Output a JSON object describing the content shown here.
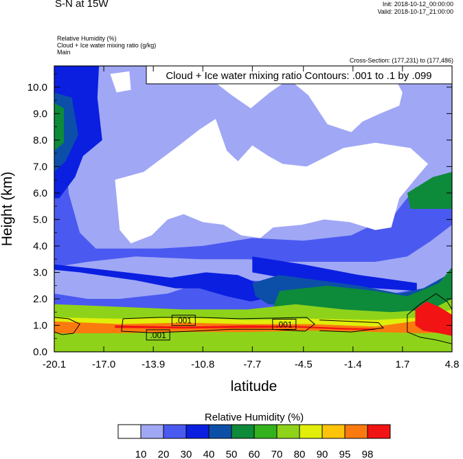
{
  "header": {
    "title": "S-N at 15W",
    "init": "Init: 2018-10-12_00:00:00",
    "valid": "Valid: 2018-10-17_21:00:00",
    "lines": [
      "Relative Humidity   (%)",
      "Cloud + Ice water mixing ratio   (g/kg)",
      "Main"
    ],
    "cross_section": "Cross-Section: (177,231) to (177,486)"
  },
  "chart_data": {
    "type": "heatmap",
    "title": "S-N at 15W",
    "contour_label": "Cloud + Ice water mixing ratio Contours: .001 to .1 by .099",
    "contour_inline_labels": [
      ".001",
      ".001",
      ".001"
    ],
    "xlabel": "latitude",
    "ylabel": "Height (km)",
    "xlim": [
      -20.1,
      4.8
    ],
    "ylim": [
      0,
      10.8
    ],
    "xticks": [
      -20.1,
      -17.0,
      -13.9,
      -10.8,
      -7.7,
      -4.5,
      -1.4,
      1.7,
      4.8
    ],
    "xtick_labels": [
      "-20.1",
      "-17.0",
      "-13.9",
      "-10.8",
      "-7.7",
      "-4.5",
      "-1.4",
      "1.7",
      "4.8"
    ],
    "yticks": [
      0,
      1,
      2,
      3,
      4,
      5,
      6,
      7,
      8,
      9,
      10
    ],
    "ytick_labels": [
      "0.0",
      "1.0",
      "2.0",
      "3.0",
      "4.0",
      "5.0",
      "6.0",
      "7.0",
      "8.0",
      "9.0",
      "10.0"
    ],
    "colorbar": {
      "title": "Relative Humidity  (%)",
      "levels": [
        "10",
        "20",
        "30",
        "40",
        "50",
        "60",
        "70",
        "80",
        "90",
        "95",
        "98"
      ],
      "colors": [
        "#ffffff",
        "#a0a7f5",
        "#4a59f0",
        "#0a1fe0",
        "#0c4fa8",
        "#0d8a3a",
        "#33b21d",
        "#8ed31a",
        "#e0ee0a",
        "#ffc40a",
        "#fb7a0f",
        "#f21414"
      ]
    },
    "regions": [
      {
        "name": "rh-bg-lowmid",
        "color": "#4a59f0",
        "points": [
          [
            -20.1,
            0
          ],
          [
            4.8,
            0
          ],
          [
            4.8,
            10.8
          ],
          [
            -20.1,
            10.8
          ]
        ]
      },
      {
        "name": "rh-light-upper",
        "color": "#a0a7f5",
        "points": [
          [
            -19.5,
            10.8
          ],
          [
            4.8,
            10.8
          ],
          [
            4.8,
            6.8
          ],
          [
            3.5,
            6.5
          ],
          [
            2.5,
            6.2
          ],
          [
            1.2,
            5.2
          ],
          [
            -1.5,
            4.4
          ],
          [
            -4.5,
            4.2
          ],
          [
            -7.7,
            4.3
          ],
          [
            -10.8,
            4.0
          ],
          [
            -13.5,
            3.9
          ],
          [
            -16,
            3.9
          ],
          [
            -17.5,
            3.9
          ],
          [
            -18.5,
            4.5
          ],
          [
            -19.2,
            6.0
          ],
          [
            -19.5,
            8.2
          ]
        ]
      },
      {
        "name": "rh-light-lower",
        "color": "#a0a7f5",
        "points": [
          [
            -20.1,
            3.2
          ],
          [
            -18,
            3.4
          ],
          [
            -15,
            3.6
          ],
          [
            -11,
            3.5
          ],
          [
            -8,
            3.5
          ],
          [
            -5.5,
            3.4
          ],
          [
            -3,
            3.4
          ],
          [
            0,
            3.4
          ],
          [
            2,
            3.6
          ],
          [
            3.5,
            4.2
          ],
          [
            4.8,
            4.8
          ],
          [
            4.8,
            2.4
          ],
          [
            3,
            2.4
          ],
          [
            1,
            2.2
          ],
          [
            -2,
            2.4
          ],
          [
            -5,
            2.6
          ],
          [
            -8,
            2.7
          ],
          [
            -11,
            2.6
          ],
          [
            -13,
            2.2
          ],
          [
            -16,
            2.0
          ],
          [
            -18,
            2.0
          ],
          [
            -20.1,
            2.2
          ]
        ]
      },
      {
        "name": "rh-dry-core",
        "color": "#ffffff",
        "points": [
          [
            -16.3,
            6.5
          ],
          [
            -14.5,
            6.8
          ],
          [
            -12.5,
            7.7
          ],
          [
            -11,
            8.4
          ],
          [
            -10,
            8.8
          ],
          [
            -9.3,
            7.6
          ],
          [
            -8.6,
            7.2
          ],
          [
            -7.7,
            7.8
          ],
          [
            -6.7,
            7.4
          ],
          [
            -5.8,
            7.1
          ],
          [
            -4.3,
            7.0
          ],
          [
            -2,
            7.7
          ],
          [
            0,
            7.9
          ],
          [
            2.2,
            7.7
          ],
          [
            3.3,
            7.1
          ],
          [
            2.6,
            6.6
          ],
          [
            1.5,
            5.8
          ],
          [
            1.0,
            4.7
          ],
          [
            0,
            4.6
          ],
          [
            -1.6,
            4.9
          ],
          [
            -3.2,
            5.0
          ],
          [
            -4.6,
            4.8
          ],
          [
            -6.4,
            4.7
          ],
          [
            -7.2,
            4.3
          ],
          [
            -8.4,
            4.4
          ],
          [
            -9.5,
            4.8
          ],
          [
            -10.8,
            4.9
          ],
          [
            -12.0,
            5.2
          ],
          [
            -13.0,
            5.0
          ],
          [
            -14.0,
            4.4
          ],
          [
            -15.3,
            4.1
          ],
          [
            -16.0,
            4.6
          ]
        ]
      },
      {
        "name": "rh-dry-top",
        "color": "#ffffff",
        "points": [
          [
            -12.0,
            10.8
          ],
          [
            0.8,
            10.8
          ],
          [
            1.7,
            9.8
          ],
          [
            1.5,
            9.3
          ],
          [
            0.3,
            9.0
          ],
          [
            -0.8,
            8.7
          ],
          [
            -1.5,
            8.3
          ],
          [
            -3.0,
            8.6
          ],
          [
            -4.2,
            9.7
          ],
          [
            -5.4,
            10.3
          ],
          [
            -6.6,
            9.8
          ],
          [
            -7.8,
            9.2
          ],
          [
            -9.0,
            9.7
          ],
          [
            -10.5,
            10.4
          ]
        ]
      },
      {
        "name": "rh-dry-topleft",
        "color": "#ffffff",
        "points": [
          [
            -16.6,
            10.5
          ],
          [
            -15.4,
            10.6
          ],
          [
            -15.3,
            9.9
          ],
          [
            -16.2,
            9.8
          ]
        ]
      },
      {
        "name": "rh-dark-left-column",
        "color": "#0a1fe0",
        "points": [
          [
            -20.1,
            10.8
          ],
          [
            -17.3,
            10.8
          ],
          [
            -17.4,
            9.6
          ],
          [
            -17.1,
            8.0
          ],
          [
            -18.3,
            7.4
          ],
          [
            -18.8,
            6.6
          ],
          [
            -19.8,
            5.8
          ],
          [
            -20.1,
            5.8
          ]
        ]
      },
      {
        "name": "rh-dark-band",
        "color": "#0a1fe0",
        "points": [
          [
            -20.1,
            3.1
          ],
          [
            -18.5,
            3.0
          ],
          [
            -15.0,
            2.7
          ],
          [
            -12.5,
            2.4
          ],
          [
            -11,
            2.4
          ],
          [
            -9.3,
            2.1
          ],
          [
            -7.8,
            1.9
          ],
          [
            -7.0,
            2.0
          ],
          [
            -7.4,
            2.6
          ],
          [
            -8.6,
            2.9
          ],
          [
            -10.6,
            3.0
          ],
          [
            -12.8,
            2.8
          ],
          [
            -15.6,
            3.0
          ],
          [
            -18.5,
            3.2
          ],
          [
            -20.1,
            3.3
          ]
        ]
      },
      {
        "name": "rh-dark-band-upper",
        "color": "#0a1fe0",
        "points": [
          [
            -7.7,
            3.6
          ],
          [
            -4.5,
            3.3
          ],
          [
            -1.0,
            2.9
          ],
          [
            1.4,
            2.7
          ],
          [
            2.6,
            2.6
          ],
          [
            2.6,
            2.3
          ],
          [
            0,
            2.4
          ],
          [
            -4,
            2.6
          ],
          [
            -7.7,
            3.0
          ]
        ]
      },
      {
        "name": "rh-navy-upper",
        "color": "#0c4fa8",
        "points": [
          [
            -20.1,
            9.8
          ],
          [
            -19.0,
            9.6
          ],
          [
            -18.6,
            8.2
          ],
          [
            -19.4,
            7.2
          ],
          [
            -20.1,
            6.8
          ]
        ]
      },
      {
        "name": "rh-navy-band",
        "color": "#0c4fa8",
        "points": [
          [
            -7.7,
            2.6
          ],
          [
            -6.0,
            2.9
          ],
          [
            -3.5,
            2.7
          ],
          [
            -1.0,
            2.5
          ],
          [
            1.5,
            2.2
          ],
          [
            3.0,
            2.4
          ],
          [
            4.8,
            3.0
          ],
          [
            4.8,
            2.0
          ],
          [
            2.5,
            1.6
          ],
          [
            -1.0,
            1.5
          ],
          [
            -4.0,
            1.7
          ],
          [
            -6.7,
            1.8
          ],
          [
            -7.5,
            2.1
          ]
        ]
      },
      {
        "name": "rh-green-upper",
        "color": "#0d8a3a",
        "points": [
          [
            -20.1,
            9.4
          ],
          [
            -19.5,
            9.2
          ],
          [
            -19.5,
            7.9
          ],
          [
            -20.1,
            7.6
          ]
        ]
      },
      {
        "name": "rh-green-right",
        "color": "#0d8a3a",
        "points": [
          [
            2.0,
            6.0
          ],
          [
            3.6,
            6.6
          ],
          [
            4.8,
            6.8
          ],
          [
            4.8,
            5.4
          ],
          [
            3.5,
            5.4
          ],
          [
            2.2,
            5.4
          ]
        ]
      },
      {
        "name": "rh-green-band",
        "color": "#0d8a3a",
        "points": [
          [
            -6.0,
            2.3
          ],
          [
            -3.0,
            2.5
          ],
          [
            0,
            2.3
          ],
          [
            2.0,
            2.1
          ],
          [
            4.0,
            2.6
          ],
          [
            4.8,
            3.2
          ],
          [
            4.8,
            1.6
          ],
          [
            2.0,
            1.4
          ],
          [
            -1.0,
            1.3
          ],
          [
            -4.0,
            1.4
          ],
          [
            -6.5,
            1.5
          ]
        ]
      },
      {
        "name": "rh-lime-band",
        "color": "#8ed31a",
        "points": [
          [
            -20.1,
            1.8
          ],
          [
            -16.0,
            1.7
          ],
          [
            -12.0,
            1.6
          ],
          [
            -8.0,
            1.6
          ],
          [
            -5.0,
            1.8
          ],
          [
            -2.0,
            1.6
          ],
          [
            1.0,
            1.5
          ],
          [
            3.5,
            1.6
          ],
          [
            4.8,
            2.0
          ],
          [
            4.8,
            0
          ],
          [
            -20.1,
            0
          ]
        ]
      },
      {
        "name": "rh-yellow-band",
        "color": "#e0ee0a",
        "points": [
          [
            -20.1,
            1.3
          ],
          [
            -16.0,
            1.25
          ],
          [
            -12.0,
            1.3
          ],
          [
            -8.0,
            1.2
          ],
          [
            -4.0,
            1.25
          ],
          [
            0,
            1.2
          ],
          [
            3.0,
            1.3
          ],
          [
            4.8,
            1.6
          ],
          [
            4.8,
            0.9
          ],
          [
            0,
            0.8
          ],
          [
            -6.0,
            0.9
          ],
          [
            -12.0,
            0.9
          ],
          [
            -20.1,
            0.8
          ]
        ]
      },
      {
        "name": "rh-orange-band",
        "color": "#fb7a0f",
        "points": [
          [
            -20.1,
            1.15
          ],
          [
            -16.0,
            1.05
          ],
          [
            -12.0,
            1.1
          ],
          [
            -8.0,
            1.05
          ],
          [
            -4.0,
            1.05
          ],
          [
            0,
            0.95
          ],
          [
            3.0,
            1.2
          ],
          [
            4.8,
            1.4
          ],
          [
            4.8,
            0.75
          ],
          [
            3.0,
            0.7
          ],
          [
            0,
            0.75
          ],
          [
            -4.0,
            0.8
          ],
          [
            -8.0,
            0.75
          ],
          [
            -12.0,
            0.75
          ],
          [
            -16.0,
            0.7
          ],
          [
            -20.1,
            0.7
          ]
        ]
      },
      {
        "name": "rh-red-band",
        "color": "#f21414",
        "points": [
          [
            -16.3,
            1.0
          ],
          [
            -12.0,
            0.95
          ],
          [
            -8.0,
            1.0
          ],
          [
            -5.0,
            0.98
          ],
          [
            -2.0,
            0.9
          ],
          [
            0,
            0.88
          ],
          [
            0,
            0.82
          ],
          [
            -2.0,
            0.84
          ],
          [
            -5.0,
            0.92
          ],
          [
            -8.0,
            0.9
          ],
          [
            -12.0,
            0.88
          ],
          [
            -16.3,
            0.9
          ]
        ]
      },
      {
        "name": "rh-red-right",
        "color": "#f21414",
        "points": [
          [
            2.5,
            1.6
          ],
          [
            3.2,
            1.9
          ],
          [
            4.0,
            1.7
          ],
          [
            4.8,
            1.4
          ],
          [
            4.8,
            0.6
          ],
          [
            4.0,
            0.7
          ],
          [
            3.0,
            0.8
          ],
          [
            2.5,
            1.0
          ]
        ]
      }
    ],
    "contours": [
      {
        "name": "cloud-contour-left",
        "points": [
          [
            -20.1,
            1.3
          ],
          [
            -19.2,
            1.25
          ],
          [
            -18.5,
            1.05
          ],
          [
            -18.9,
            0.7
          ],
          [
            -19.6,
            0.65
          ],
          [
            -20.1,
            0.75
          ]
        ]
      },
      {
        "name": "cloud-contour-main",
        "points": [
          [
            -15.8,
            1.25
          ],
          [
            -13.5,
            1.3
          ],
          [
            -11.0,
            1.3
          ],
          [
            -8.5,
            1.25
          ],
          [
            -6.0,
            1.28
          ],
          [
            -4.3,
            1.3
          ],
          [
            -3.8,
            1.05
          ],
          [
            -4.4,
            0.78
          ],
          [
            -6.5,
            0.85
          ],
          [
            -9.0,
            0.85
          ],
          [
            -11.5,
            0.78
          ],
          [
            -14.0,
            0.72
          ],
          [
            -15.9,
            0.78
          ],
          [
            -15.8,
            1.25
          ]
        ]
      },
      {
        "name": "cloud-contour-mid",
        "points": [
          [
            -3.5,
            1.2
          ],
          [
            -1.5,
            1.15
          ],
          [
            0.2,
            1.1
          ],
          [
            0.5,
            0.9
          ],
          [
            -1.5,
            0.75
          ],
          [
            -3.5,
            0.8
          ]
        ]
      },
      {
        "name": "cloud-contour-right",
        "points": [
          [
            2.0,
            1.4
          ],
          [
            2.8,
            1.8
          ],
          [
            3.8,
            2.2
          ],
          [
            4.5,
            1.9
          ],
          [
            4.8,
            1.6
          ],
          [
            4.8,
            0.3
          ],
          [
            3.8,
            0.45
          ],
          [
            2.8,
            0.55
          ],
          [
            2.0,
            0.75
          ],
          [
            2.0,
            1.4
          ]
        ]
      }
    ]
  }
}
